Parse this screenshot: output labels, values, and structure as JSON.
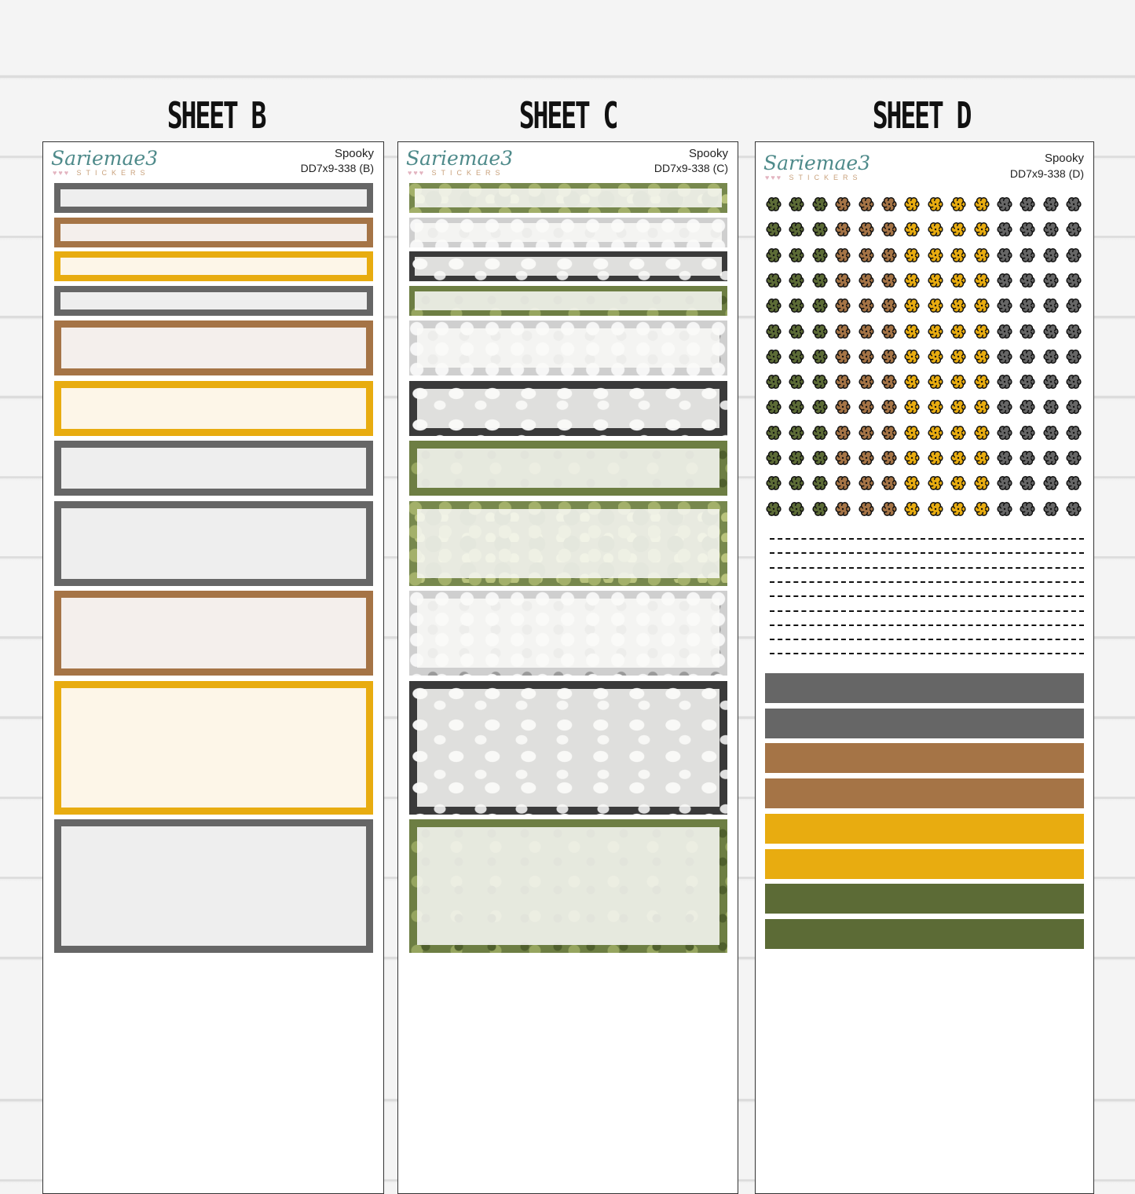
{
  "headings": [
    "SHEET B",
    "SHEET C",
    "SHEET D"
  ],
  "brand": {
    "name": "Sariemae3",
    "sub": "STICKERS",
    "hearts": "♥♥♥"
  },
  "sheets": [
    {
      "theme": "Spooky",
      "code": "DD7x9-338 (B)"
    },
    {
      "theme": "Spooky",
      "code": "DD7x9-338 (C)"
    },
    {
      "theme": "Spooky",
      "code": "DD7x9-338 (D)"
    }
  ],
  "colors": {
    "grey": "#666666",
    "brown": "#a57446",
    "yellow": "#e8ac10",
    "olive": "#5c6b36",
    "dark": "#222222"
  },
  "sheet_d": {
    "flower_columns": [
      "olive",
      "olive",
      "olive",
      "brown",
      "brown",
      "brown",
      "yellow",
      "yellow",
      "yellow",
      "yellow",
      "grey",
      "grey",
      "grey",
      "grey"
    ],
    "flower_rows": 13,
    "dash_rows": 9,
    "strips": [
      "grey",
      "grey",
      "brown",
      "brown",
      "yellow",
      "yellow",
      "olive",
      "olive"
    ]
  }
}
